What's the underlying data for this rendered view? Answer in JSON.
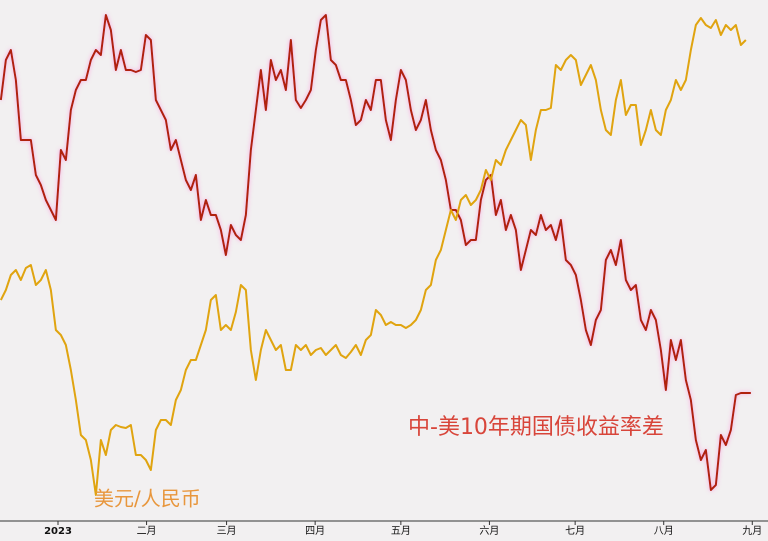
{
  "chart_data": {
    "type": "line",
    "x": [
      -20,
      -18.25,
      -16.5,
      -14.75,
      -13,
      -11.25,
      -9.5,
      -7.75,
      -6,
      -4.25,
      -2.5,
      -0.75,
      1,
      2.75,
      4.5,
      6.25,
      8,
      9.75,
      11.5,
      13.25,
      15,
      16.75,
      18.5,
      20.25,
      22,
      23.75,
      25.5,
      27.25,
      29,
      30.75,
      32.5,
      34.25,
      36,
      37.75,
      39.5,
      41.25,
      43,
      44.75,
      46.5,
      48.25,
      50,
      51.75,
      53.5,
      55.25,
      57,
      58.75,
      60.5,
      62.25,
      64,
      65.75,
      67.5,
      69.25,
      71,
      72.75,
      74.5,
      76.25,
      78,
      79.75,
      81.5,
      83.25,
      85,
      86.75,
      88.5,
      90.25,
      92,
      93.75,
      95.5,
      97.25,
      99,
      100.75,
      102.5,
      104.25,
      106,
      107.75,
      109.5,
      111.25,
      113,
      114.75,
      116.5,
      118.25,
      120,
      121.75,
      123.5,
      125.25,
      127,
      128.75,
      130.5,
      132.25,
      134,
      135.75,
      137.5,
      139.25,
      141,
      142.75,
      144.5,
      146.25,
      148,
      149.75,
      151.5,
      153.25,
      155,
      156.75,
      158.5,
      160.25,
      162,
      163.75,
      165.5,
      167.25,
      169,
      170.75,
      172.5,
      174.25,
      176,
      177.75,
      179.5,
      181.25,
      183,
      184.75,
      186.5,
      188.25,
      190,
      191.75,
      193.5,
      195.25,
      197,
      198.75,
      200.5,
      202.25,
      204,
      205.75,
      207.5,
      209.25,
      211,
      212.75,
      214.5,
      216.25,
      218,
      219.75,
      221.5,
      223.25,
      225,
      226.75,
      228.5,
      230.25,
      232,
      233.75,
      235.5,
      237.25,
      239,
      240.75,
      242.5
    ],
    "series": [
      {
        "name": "中-美10年期国债收益率差",
        "color": "#b0200f",
        "label_color": "#d8453a",
        "values": [
          84,
          92,
          94,
          88,
          76,
          76,
          76,
          69,
          67,
          64,
          62,
          60,
          74,
          72,
          82,
          86,
          88,
          88,
          92,
          94,
          93,
          101,
          98,
          90,
          94,
          90,
          90,
          89.6,
          90,
          97,
          96,
          84,
          82,
          80,
          74,
          76,
          72,
          68,
          66,
          69,
          60,
          64,
          61,
          61,
          58,
          53,
          59,
          57,
          56,
          61,
          74,
          82,
          90,
          82,
          92,
          88,
          90,
          86,
          96,
          84,
          82.4,
          84,
          86,
          94,
          100,
          101,
          92,
          91,
          88,
          88,
          84,
          79,
          80,
          84,
          82,
          88,
          88,
          80,
          76,
          84,
          90,
          88,
          82,
          78,
          80,
          84,
          78,
          74,
          72,
          68,
          62,
          62,
          60,
          55,
          56,
          56,
          64,
          68,
          69,
          61,
          64,
          58,
          61,
          58,
          50,
          54,
          58,
          57,
          61,
          58,
          59,
          56,
          60,
          52,
          51,
          49,
          44,
          38,
          35,
          40,
          42,
          52,
          54,
          51,
          56,
          48,
          46,
          47,
          40,
          38,
          42,
          40,
          34,
          26,
          36,
          32,
          36,
          28,
          24,
          16,
          12,
          14,
          6,
          7,
          17,
          15,
          18,
          25,
          25.4,
          25.4,
          25.4
        ]
      },
      {
        "name": "美元/人民币",
        "color": "#e0a410",
        "label_color": "#e8963c",
        "values": [
          44,
          46,
          49,
          50,
          48,
          50.4,
          51,
          47,
          48,
          50,
          46,
          38,
          37,
          35,
          30,
          24,
          17,
          16,
          12,
          5,
          16,
          13,
          18,
          19,
          18.6,
          18.4,
          19,
          13,
          13,
          12,
          10,
          18,
          20,
          20,
          19,
          24,
          26,
          30,
          32,
          32,
          35,
          38,
          44,
          45,
          38,
          39,
          38,
          41.6,
          47,
          46,
          34,
          28,
          34,
          38,
          36,
          34,
          35,
          30,
          30,
          35,
          34,
          35,
          33,
          34,
          34.4,
          33,
          34,
          35,
          33,
          32.4,
          33.6,
          35,
          33,
          36,
          37,
          42,
          41,
          39,
          39.6,
          39,
          39,
          38.4,
          39,
          40,
          42,
          46,
          47,
          52,
          54,
          58,
          62,
          60,
          64,
          65,
          63,
          64,
          66,
          70,
          68,
          72,
          71,
          74,
          76,
          78,
          80,
          79,
          72,
          78,
          82,
          82,
          82.4,
          91,
          90,
          92,
          93,
          92,
          87,
          89,
          91,
          88,
          82,
          78,
          77,
          84,
          88,
          81,
          83,
          83,
          75,
          78,
          82,
          78,
          77,
          82,
          84,
          88,
          86,
          88,
          94,
          99,
          100.4,
          99,
          98.4,
          100,
          97,
          99,
          98,
          99,
          95,
          96,
          null
        ]
      }
    ],
    "xlim": [
      -20.3,
      248.5
    ],
    "xticks": [
      {
        "value": 0,
        "label": "2023"
      },
      {
        "value": 31,
        "label": "二月"
      },
      {
        "value": 59,
        "label": "三月"
      },
      {
        "value": 90,
        "label": "四月"
      },
      {
        "value": 120,
        "label": "五月"
      },
      {
        "value": 151,
        "label": "六月"
      },
      {
        "value": 181,
        "label": "七月"
      },
      {
        "value": 212,
        "label": "八月"
      },
      {
        "value": 243,
        "label": "九月"
      }
    ],
    "ylim": [
      0,
      104
    ]
  }
}
